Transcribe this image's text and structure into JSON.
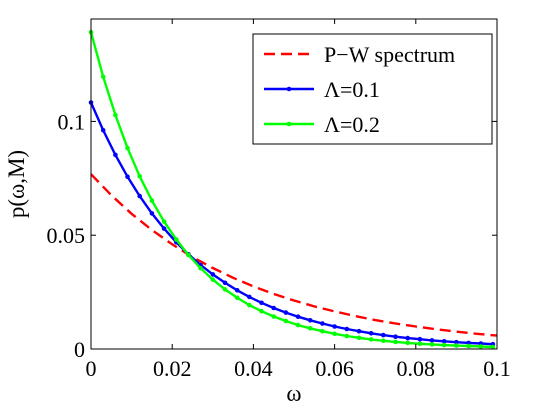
{
  "chart_data": {
    "type": "line",
    "title": "",
    "xlabel": "ω",
    "ylabel": "p(ω,M)",
    "xlim": [
      0,
      0.1
    ],
    "ylim": [
      0,
      0.145
    ],
    "xticks": [
      0,
      0.02,
      0.04,
      0.06,
      0.08,
      0.1
    ],
    "xtick_labels": [
      "0",
      "0.02",
      "0.04",
      "0.06",
      "0.08",
      "0.1"
    ],
    "yticks": [
      0,
      0.05,
      0.1
    ],
    "ytick_labels": [
      "0",
      "0.05",
      "0.1"
    ],
    "grid": false,
    "legend_position": "top-right",
    "series": [
      {
        "name": "P−W spectrum",
        "color": "#ff0000",
        "style": "dashed",
        "markers": false,
        "x": [
          0,
          0.005,
          0.01,
          0.015,
          0.02,
          0.025,
          0.03,
          0.035,
          0.04,
          0.045,
          0.05,
          0.055,
          0.06,
          0.065,
          0.07,
          0.075,
          0.08,
          0.085,
          0.09,
          0.095,
          0.1
        ],
        "y": [
          0.0768,
          0.0676,
          0.0594,
          0.0523,
          0.046,
          0.0404,
          0.0356,
          0.0313,
          0.0275,
          0.0242,
          0.0213,
          0.0187,
          0.0165,
          0.0145,
          0.0127,
          0.0112,
          0.0099,
          0.0087,
          0.0076,
          0.0067,
          0.0059
        ]
      },
      {
        "name": "Λ=0.1",
        "color": "#0000ff",
        "style": "solid",
        "markers": true,
        "x": [
          0,
          0.003,
          0.006,
          0.009,
          0.012,
          0.015,
          0.018,
          0.021,
          0.024,
          0.027,
          0.03,
          0.033,
          0.036,
          0.039,
          0.042,
          0.045,
          0.048,
          0.051,
          0.054,
          0.057,
          0.06,
          0.063,
          0.066,
          0.069,
          0.072,
          0.075,
          0.078,
          0.081,
          0.084,
          0.087,
          0.09,
          0.093,
          0.096,
          0.099
        ],
        "y": [
          0.1083,
          0.0961,
          0.0853,
          0.0757,
          0.0672,
          0.0596,
          0.0529,
          0.0469,
          0.0416,
          0.0369,
          0.0328,
          0.0291,
          0.0258,
          0.0229,
          0.0203,
          0.018,
          0.016,
          0.0142,
          0.0126,
          0.0112,
          0.0099,
          0.0088,
          0.0078,
          0.0069,
          0.0061,
          0.0054,
          0.0048,
          0.0043,
          0.0038,
          0.0034,
          0.003,
          0.0027,
          0.0024,
          0.0021
        ]
      },
      {
        "name": "Λ=0.2",
        "color": "#00ff00",
        "style": "solid",
        "markers": true,
        "x": [
          0,
          0.003,
          0.006,
          0.009,
          0.012,
          0.015,
          0.018,
          0.021,
          0.024,
          0.027,
          0.03,
          0.033,
          0.036,
          0.039,
          0.042,
          0.045,
          0.048,
          0.051,
          0.054,
          0.057,
          0.06,
          0.063,
          0.066,
          0.069,
          0.072,
          0.075,
          0.078,
          0.081,
          0.084,
          0.087,
          0.09,
          0.093,
          0.096,
          0.099
        ],
        "y": [
          0.1392,
          0.1196,
          0.1028,
          0.0883,
          0.0759,
          0.0652,
          0.056,
          0.0481,
          0.0413,
          0.0355,
          0.0305,
          0.0262,
          0.0225,
          0.0193,
          0.0166,
          0.0143,
          0.0123,
          0.0105,
          0.0091,
          0.0078,
          0.0067,
          0.0057,
          0.0049,
          0.0042,
          0.0036,
          0.0031,
          0.0027,
          0.0023,
          0.002,
          0.0017,
          0.0015,
          0.0013,
          0.0011,
          0.0009
        ]
      }
    ]
  }
}
